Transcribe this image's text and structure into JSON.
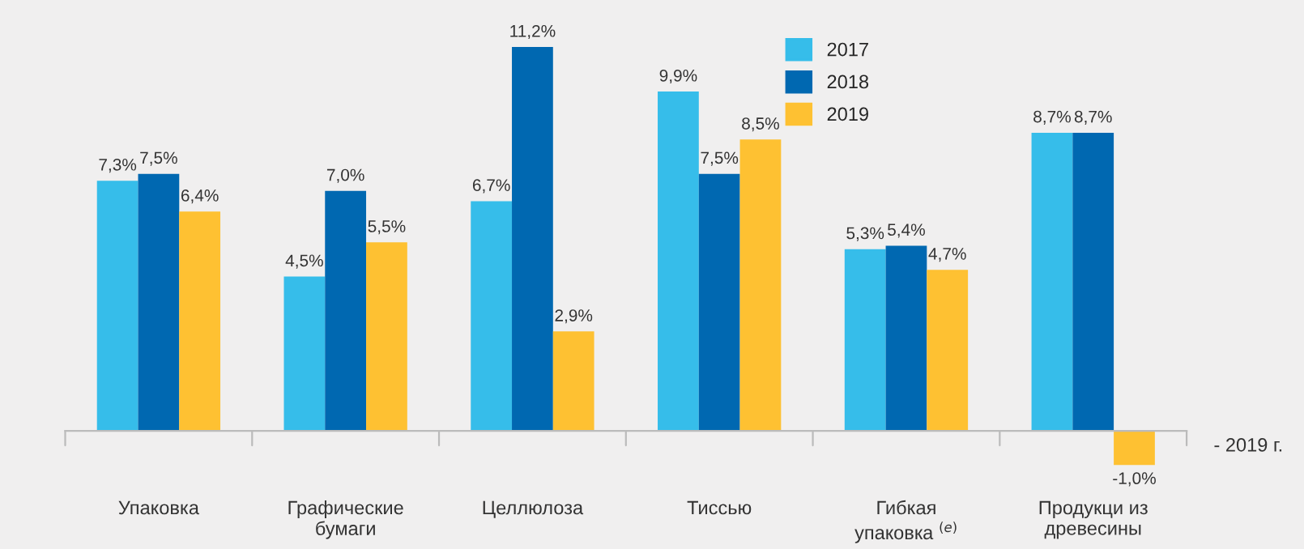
{
  "chart_data": {
    "type": "bar",
    "categories": [
      "Упаковка",
      "Графические\nбумаги",
      "Целлюлоза",
      "Тиссью",
      "Гибкая\nупаковка $^{(e)}$",
      "Продукци из\nдревесины"
    ],
    "series": [
      {
        "name": "2017",
        "color": "#36bdea",
        "values": [
          7.3,
          4.5,
          6.7,
          9.9,
          5.3,
          8.7
        ],
        "value_labels": [
          "7,3%",
          "4,5%",
          "6,7%",
          "9,9%",
          "5,3%",
          "8,7%"
        ]
      },
      {
        "name": "2018",
        "color": "#0068b1",
        "values": [
          7.5,
          7.0,
          11.2,
          7.5,
          5.4,
          8.7
        ],
        "value_labels": [
          "7,5%",
          "7,0%",
          "11,2%",
          "7,5%",
          "5,4%",
          "8,7%"
        ]
      },
      {
        "name": "2019",
        "color": "#fec132",
        "values": [
          6.4,
          5.5,
          2.9,
          8.5,
          4.7,
          -1.0
        ],
        "value_labels": [
          "6,4%",
          "5,5%",
          "2,9%",
          "8,5%",
          "4,7%",
          "-1,0%"
        ]
      }
    ],
    "annotations": [
      "- 2019 г."
    ],
    "legend": "top",
    "grid": false
  }
}
